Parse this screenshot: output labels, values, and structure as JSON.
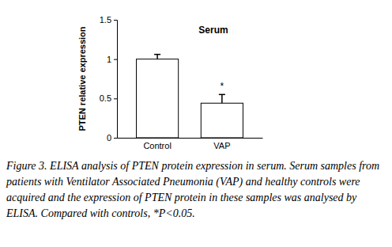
{
  "chart_data": {
    "type": "bar",
    "title": "Serum",
    "y_label": "PTEN relative expression",
    "categories": [
      "Control",
      "VAP"
    ],
    "values": [
      1.0,
      0.44
    ],
    "errors": [
      0.06,
      0.11
    ],
    "color": "#ffffff",
    "ylim": [
      0,
      1.5
    ],
    "yticks": [
      0,
      0.5,
      1,
      1.5
    ],
    "grid": false,
    "annotations": [
      {
        "text": "*",
        "x": "VAP"
      }
    ],
    "caption": "Figure 3. ELISA analysis of PTEN protein expression in serum. Serum samples from patients with Ventilator Associated Pneumonia (VAP) and healthy controls were acquired and the expression of PTEN protein in these samples was analysed by ELISA. Compared with controls, *P<0.05."
  }
}
